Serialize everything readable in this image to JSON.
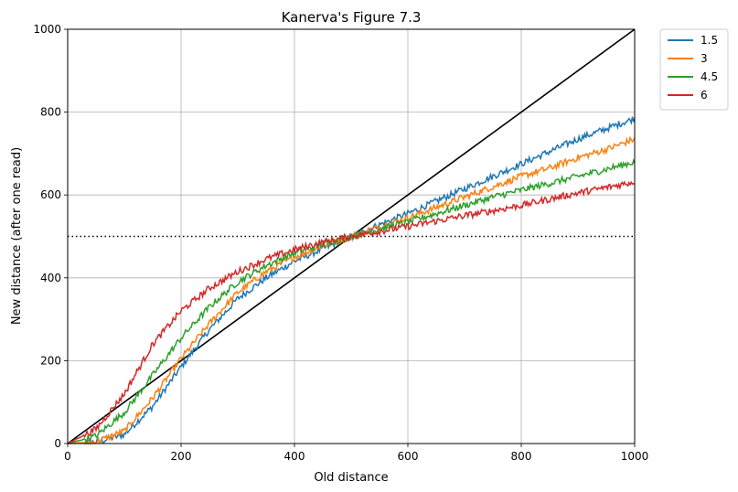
{
  "chart_data": {
    "type": "line",
    "title": "Kanerva's Figure 7.3",
    "xlabel": "Old distance",
    "ylabel": "New distance (after one read)",
    "xlim": [
      0,
      1000
    ],
    "ylim": [
      0,
      1000
    ],
    "xticks": [
      "0",
      "200",
      "400",
      "600",
      "800",
      "1000"
    ],
    "yticks": [
      "0",
      "200",
      "400",
      "600",
      "800",
      "1000"
    ],
    "grid": true,
    "legend_position": "outside-top-right",
    "series": [
      {
        "name": "1.5",
        "color": "#1f77b4",
        "x": [
          0,
          50,
          100,
          150,
          200,
          250,
          300,
          350,
          400,
          450,
          500,
          550,
          600,
          650,
          700,
          750,
          800,
          850,
          900,
          950,
          1000
        ],
        "y": [
          0,
          3,
          22,
          90,
          185,
          275,
          350,
          400,
          440,
          470,
          500,
          528,
          555,
          585,
          615,
          645,
          675,
          705,
          735,
          760,
          785
        ]
      },
      {
        "name": "3",
        "color": "#ff7f0e",
        "x": [
          0,
          50,
          100,
          150,
          200,
          250,
          300,
          350,
          400,
          450,
          500,
          550,
          600,
          650,
          700,
          750,
          800,
          850,
          900,
          950,
          1000
        ],
        "y": [
          0,
          4,
          30,
          110,
          205,
          290,
          365,
          415,
          450,
          478,
          500,
          523,
          545,
          570,
          595,
          620,
          645,
          665,
          690,
          710,
          735
        ]
      },
      {
        "name": "4.5",
        "color": "#2ca02c",
        "x": [
          0,
          50,
          100,
          150,
          200,
          250,
          300,
          350,
          400,
          450,
          500,
          550,
          600,
          650,
          700,
          750,
          800,
          850,
          900,
          950,
          1000
        ],
        "y": [
          0,
          18,
          75,
          165,
          255,
          330,
          390,
          430,
          460,
          482,
          500,
          518,
          535,
          555,
          575,
          595,
          612,
          628,
          645,
          662,
          680
        ]
      },
      {
        "name": "6",
        "color": "#d62728",
        "x": [
          0,
          50,
          100,
          150,
          200,
          250,
          300,
          350,
          400,
          450,
          500,
          550,
          600,
          650,
          700,
          750,
          800,
          850,
          900,
          950,
          1000
        ],
        "y": [
          0,
          35,
          120,
          240,
          320,
          375,
          415,
          445,
          468,
          486,
          500,
          512,
          524,
          537,
          550,
          562,
          575,
          590,
          605,
          618,
          632
        ]
      }
    ],
    "reference_lines": [
      {
        "kind": "diagonal",
        "from": [
          0,
          0
        ],
        "to": [
          1000,
          1000
        ],
        "color": "#000000",
        "style": "solid"
      },
      {
        "kind": "horizontal",
        "y": 500,
        "color": "#000000",
        "style": "dotted"
      }
    ]
  }
}
